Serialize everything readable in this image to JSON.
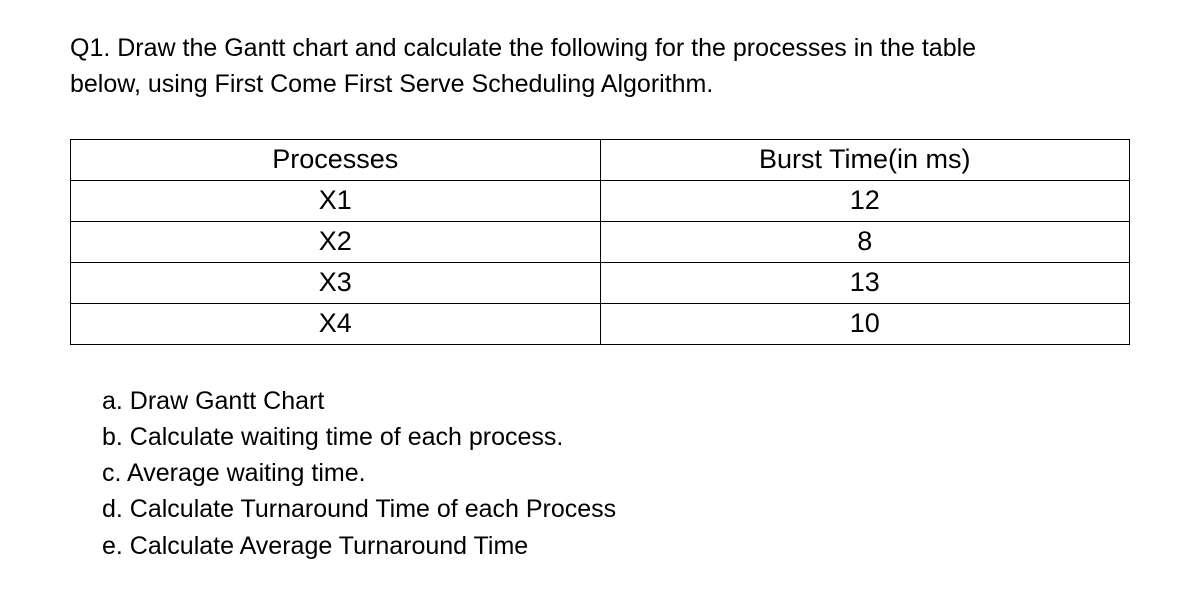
{
  "question": {
    "prompt_line1": "Q1. Draw the Gantt chart and calculate the following for the processes in the table",
    "prompt_line2": "below, using First Come First Serve Scheduling Algorithm."
  },
  "table": {
    "header": {
      "col1": "Processes",
      "col2": "Burst Time(in ms)"
    },
    "rows": [
      {
        "process": "X1",
        "burst": "12"
      },
      {
        "process": "X2",
        "burst": "8"
      },
      {
        "process": "X3",
        "burst": "13"
      },
      {
        "process": "X4",
        "burst": "10"
      }
    ],
    "border_color": "#000000",
    "background_color": "#ffffff",
    "text_color": "#000000",
    "header_fontsize": 27,
    "cell_fontsize": 27
  },
  "subquestions": {
    "a": "a. Draw Gantt Chart",
    "b": "b. Calculate waiting time of each process.",
    "c": "c. Average waiting time.",
    "d": "d. Calculate Turnaround Time of each Process",
    "e": "e. Calculate Average Turnaround Time"
  },
  "style": {
    "font_family": "Arial",
    "text_color": "#000000",
    "background_color": "#ffffff",
    "body_fontsize": 25
  }
}
